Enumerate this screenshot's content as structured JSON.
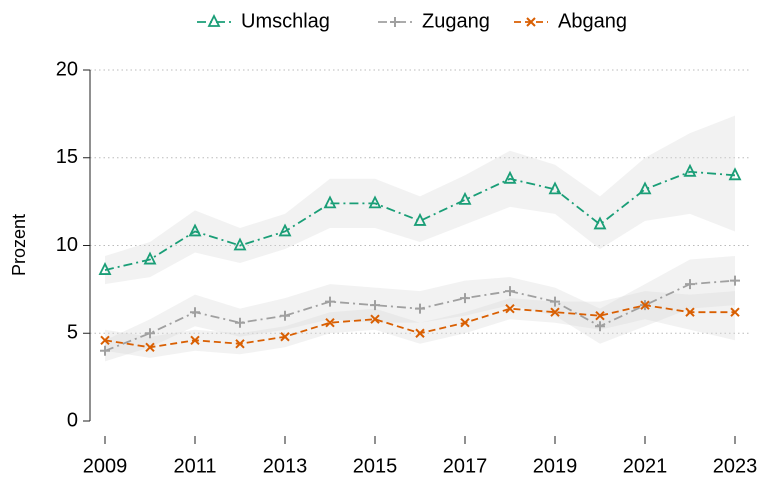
{
  "chart_data": {
    "type": "line",
    "ylabel": "Prozent",
    "x": [
      2009,
      2010,
      2011,
      2012,
      2013,
      2014,
      2015,
      2016,
      2017,
      2018,
      2019,
      2020,
      2021,
      2022,
      2023
    ],
    "xlim": [
      2009,
      2023
    ],
    "xticks": [
      2009,
      2011,
      2013,
      2015,
      2017,
      2019,
      2021,
      2023
    ],
    "ylim": [
      0,
      20
    ],
    "yticks": [
      0,
      5,
      10,
      15,
      20
    ],
    "grid": true,
    "legend": "top",
    "band_color": "#d9d9d9",
    "series": [
      {
        "name": "Umschlag",
        "color": "#1a9e77",
        "marker": "triangle",
        "dash": "dashdot",
        "values": [
          8.6,
          9.2,
          10.8,
          10.0,
          10.8,
          12.4,
          12.4,
          11.4,
          12.6,
          13.8,
          13.2,
          11.2,
          13.2,
          14.2,
          14.0
        ],
        "lower": [
          7.8,
          8.2,
          9.6,
          9.0,
          9.8,
          11.0,
          11.0,
          10.2,
          11.2,
          12.2,
          11.8,
          9.8,
          11.4,
          11.8,
          10.8
        ],
        "upper": [
          9.4,
          10.2,
          12.0,
          11.0,
          11.8,
          13.8,
          13.8,
          12.8,
          14.0,
          15.4,
          14.6,
          12.8,
          15.0,
          16.4,
          17.4
        ]
      },
      {
        "name": "Zugang",
        "color": "#a0a0a0",
        "marker": "plus",
        "dash": "dashdot",
        "values": [
          4.0,
          5.0,
          6.2,
          5.6,
          6.0,
          6.8,
          6.6,
          6.4,
          7.0,
          7.4,
          6.8,
          5.4,
          6.6,
          7.8,
          8.0
        ],
        "lower": [
          3.4,
          4.2,
          5.4,
          4.8,
          5.2,
          5.8,
          5.6,
          5.6,
          6.0,
          6.6,
          6.0,
          4.4,
          5.4,
          6.4,
          6.6
        ],
        "upper": [
          4.6,
          5.8,
          7.2,
          6.4,
          7.0,
          7.8,
          7.6,
          7.4,
          8.0,
          8.2,
          7.6,
          6.4,
          7.8,
          9.2,
          9.4
        ]
      },
      {
        "name": "Abgang",
        "color": "#d95f02",
        "marker": "x",
        "dash": "dashed",
        "values": [
          4.6,
          4.2,
          4.6,
          4.4,
          4.8,
          5.6,
          5.8,
          5.0,
          5.6,
          6.4,
          6.2,
          6.0,
          6.6,
          6.2,
          6.2
        ],
        "lower": [
          4.0,
          3.6,
          4.0,
          3.8,
          4.2,
          5.0,
          5.2,
          4.4,
          5.0,
          5.8,
          5.6,
          5.2,
          5.8,
          5.2,
          4.6
        ],
        "upper": [
          5.2,
          4.8,
          5.2,
          5.0,
          5.4,
          6.2,
          6.4,
          5.6,
          6.2,
          7.0,
          6.8,
          6.8,
          7.4,
          7.2,
          7.4
        ]
      }
    ]
  }
}
